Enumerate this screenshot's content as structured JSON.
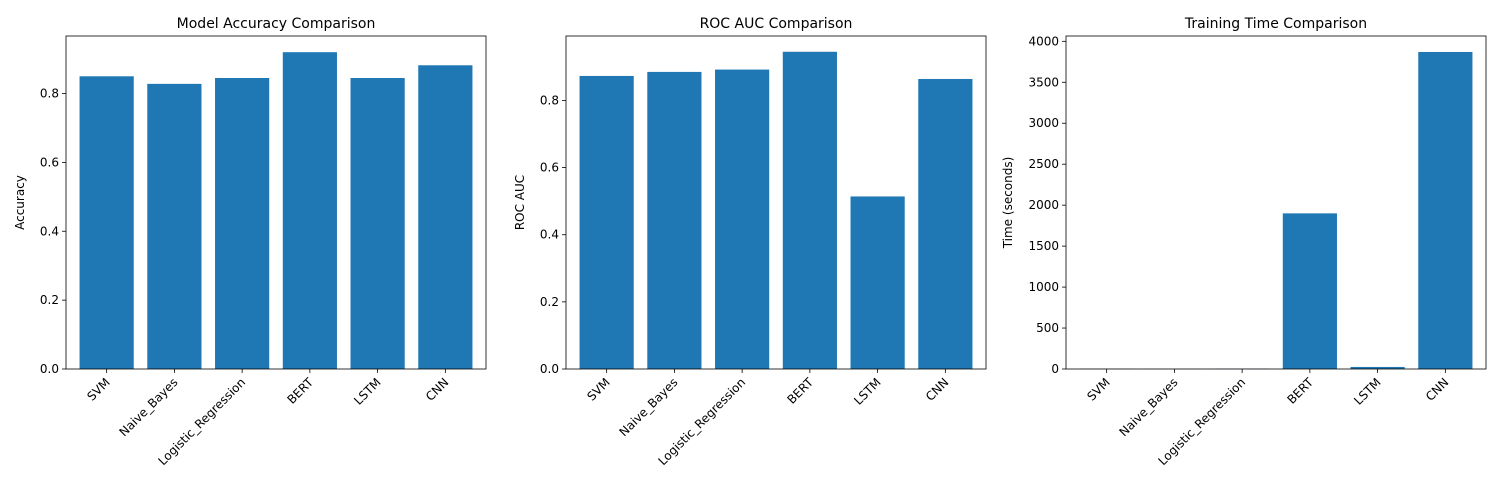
{
  "chart_data": [
    {
      "type": "bar",
      "title": "Model Accuracy Comparison",
      "xlabel": "",
      "ylabel": "Accuracy",
      "categories": [
        "SVM",
        "Naive_Bayes",
        "Logistic_Regression",
        "BERT",
        "LSTM",
        "CNN"
      ],
      "values": [
        0.85,
        0.828,
        0.845,
        0.92,
        0.845,
        0.882
      ],
      "ylim": [
        0,
        0.967
      ],
      "yticks": [
        0.0,
        0.2,
        0.4,
        0.6,
        0.8
      ],
      "ytick_labels": [
        "0.0",
        "0.2",
        "0.4",
        "0.6",
        "0.8"
      ],
      "color": "#1f77b4",
      "grid": false
    },
    {
      "type": "bar",
      "title": "ROC AUC Comparison",
      "xlabel": "",
      "ylabel": "ROC AUC",
      "categories": [
        "SVM",
        "Naive_Bayes",
        "Logistic_Regression",
        "BERT",
        "LSTM",
        "CNN"
      ],
      "values": [
        0.873,
        0.885,
        0.892,
        0.945,
        0.514,
        0.864
      ],
      "ylim": [
        0,
        0.992
      ],
      "yticks": [
        0.0,
        0.2,
        0.4,
        0.6,
        0.8
      ],
      "ytick_labels": [
        "0.0",
        "0.2",
        "0.4",
        "0.6",
        "0.8"
      ],
      "color": "#1f77b4",
      "grid": false
    },
    {
      "type": "bar",
      "title": "Training Time Comparison",
      "xlabel": "",
      "ylabel": "Time (seconds)",
      "categories": [
        "SVM",
        "Naive_Bayes",
        "Logistic_Regression",
        "BERT",
        "LSTM",
        "CNN"
      ],
      "values": [
        2,
        1,
        3,
        1900,
        25,
        3870
      ],
      "ylim": [
        0,
        4065
      ],
      "yticks": [
        0,
        500,
        1000,
        1500,
        2000,
        2500,
        3000,
        3500,
        4000
      ],
      "ytick_labels": [
        "0",
        "500",
        "1000",
        "1500",
        "2000",
        "2500",
        "3000",
        "3500",
        "4000"
      ],
      "color": "#1f77b4",
      "grid": false
    }
  ]
}
